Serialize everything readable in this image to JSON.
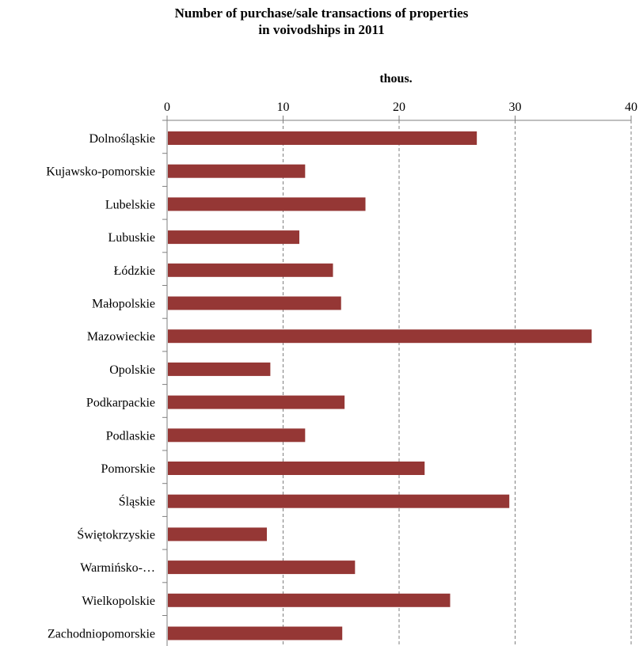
{
  "chart_data": {
    "type": "bar",
    "orientation": "horizontal",
    "title_lines": [
      "Number of purchase/sale transactions of properties",
      "in voivodships in 2011"
    ],
    "xlabel": "thous.",
    "ylabel": "",
    "xlim": [
      0,
      40
    ],
    "x_ticks": [
      0,
      10,
      20,
      30,
      40
    ],
    "grid": "vertical dashed",
    "legend": "none",
    "bar_color": "#953735",
    "categories": [
      "Dolnośląskie",
      "Kujawsko-pomorskie",
      "Lubelskie",
      "Lubuskie",
      "Łódzkie",
      "Małopolskie",
      "Mazowieckie",
      "Opolskie",
      "Podkarpackie",
      "Podlaskie",
      "Pomorskie",
      "Śląskie",
      "Świętokrzyskie",
      "Warmińsko-…",
      "Wielkopolskie",
      "Zachodniopomorskie"
    ],
    "values": [
      26.7,
      11.9,
      17.1,
      11.4,
      14.3,
      15.0,
      36.6,
      8.9,
      15.3,
      11.9,
      22.2,
      29.5,
      8.6,
      16.2,
      24.4,
      15.1
    ]
  }
}
